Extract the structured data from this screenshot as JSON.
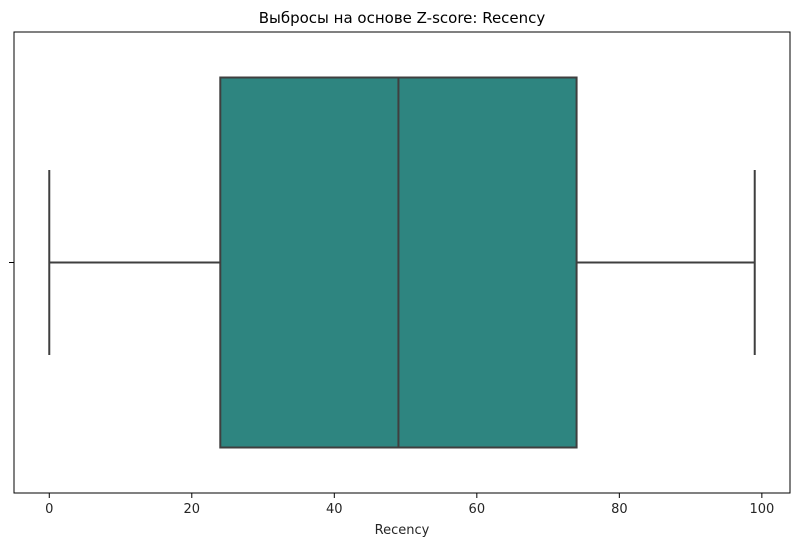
{
  "chart_data": {
    "type": "box",
    "title": "Выбросы на основе Z-score: Recency",
    "xlabel": "Recency",
    "ylabel": "",
    "xlim": [
      -4.95,
      103.95
    ],
    "xticks": [
      0,
      20,
      40,
      60,
      80,
      100
    ],
    "orientation": "horizontal",
    "grid": false,
    "series": [
      {
        "min": 0,
        "q1": 24,
        "median": 49,
        "q3": 74,
        "max": 99,
        "outliers": []
      }
    ],
    "colors": {
      "box_fill": "#2e8580",
      "line": "#3f3f3f",
      "axis": "#000000",
      "text": "#262626"
    }
  }
}
